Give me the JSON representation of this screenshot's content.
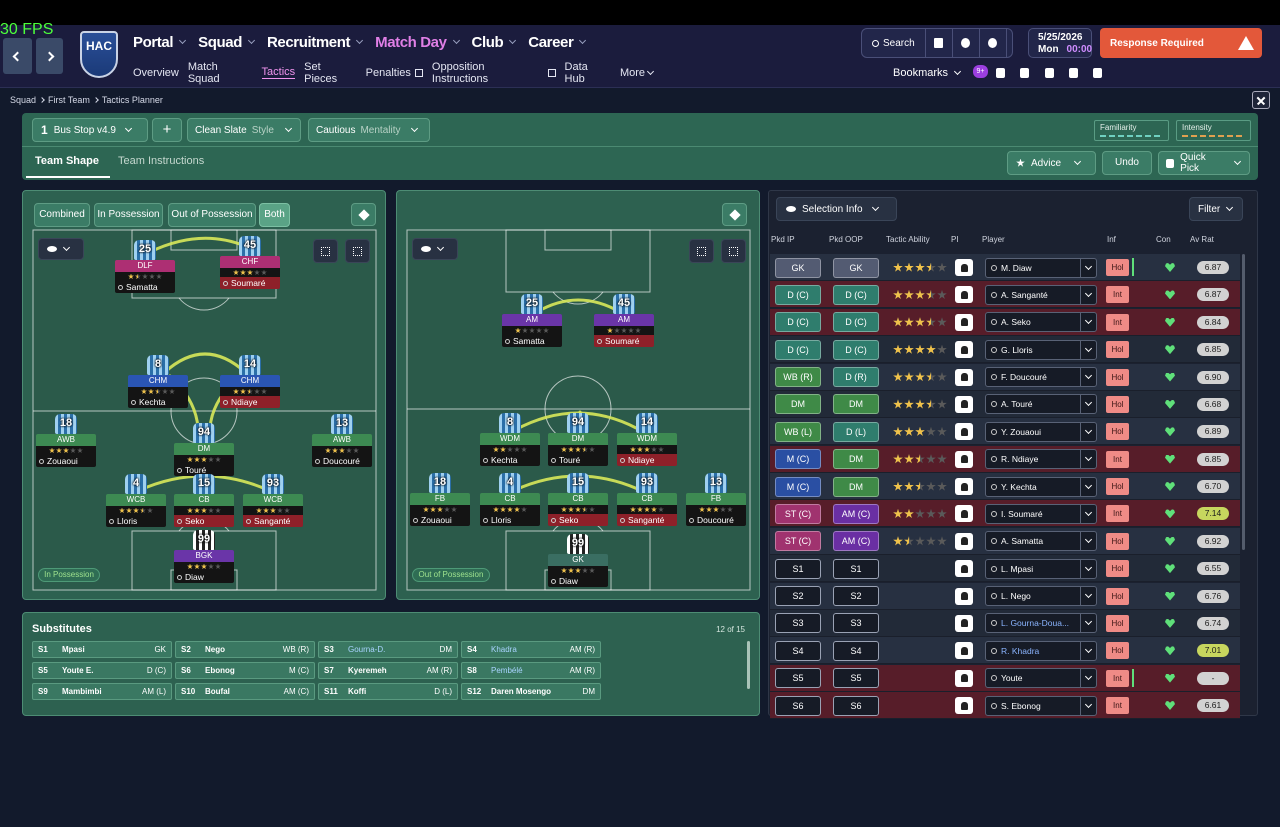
{
  "status": {
    "fps": "30 FPS"
  },
  "header": {
    "club": "HAC",
    "nav": [
      "Portal",
      "Squad",
      "Recruitment",
      "Match Day",
      "Club",
      "Career"
    ],
    "subnav": [
      "Overview",
      "Match Squad",
      "Tactics",
      "Set Pieces",
      "Penalties",
      "Opposition Instructions",
      "Data Hub",
      "More"
    ],
    "search": "Search",
    "date": "5/25/2026",
    "day": "Mon",
    "time": "00:00",
    "alert": "Response Required",
    "bookmarks": "Bookmarks",
    "badge": "9+"
  },
  "breadcrumb": [
    "Squad",
    "First Team",
    "Tactics Planner"
  ],
  "toolbar": {
    "slot": "1",
    "tactic": "Bus Stop v4.9",
    "add": "+",
    "style": "Clean Slate",
    "style_label": "Style",
    "mentality": "Cautious",
    "mentality_label": "Mentality",
    "familiarity": "Familiarity",
    "intensity": "Intensity"
  },
  "tabs": [
    "Team Shape",
    "Team Instructions"
  ],
  "actions": [
    "Advice",
    "Undo",
    "Quick Pick"
  ],
  "filters": [
    "Combined",
    "In Possession",
    "Out of Possession",
    "Both"
  ],
  "pitches": [
    {
      "label": "In Possession",
      "players": [
        {
          "number": "25",
          "role": "DLF",
          "name": "Samatta",
          "stars": 1.5
        },
        {
          "number": "45",
          "role": "CHF",
          "name": "Soumaré",
          "stars": 3
        },
        {
          "number": "8",
          "role": "CHM",
          "name": "Kechta",
          "stars": 2.5
        },
        {
          "number": "14",
          "role": "CHM",
          "name": "Ndiaye",
          "stars": 2.5
        },
        {
          "number": "18",
          "role": "AWB",
          "name": "Zouaoui",
          "stars": 3
        },
        {
          "number": "94",
          "role": "DM",
          "name": "Touré",
          "stars": 3
        },
        {
          "number": "13",
          "role": "AWB",
          "name": "Doucouré",
          "stars": 3
        },
        {
          "number": "4",
          "role": "WCB",
          "name": "Lloris",
          "stars": 3.5
        },
        {
          "number": "15",
          "role": "CB",
          "name": "Seko",
          "stars": 3
        },
        {
          "number": "93",
          "role": "WCB",
          "name": "Sanganté",
          "stars": 3
        },
        {
          "number": "99",
          "role": "BGK",
          "name": "Diaw",
          "stars": 3
        }
      ]
    },
    {
      "label": "Out of Possession",
      "players": [
        {
          "number": "25",
          "role": "AM",
          "name": "Samatta",
          "stars": 1
        },
        {
          "number": "45",
          "role": "AM",
          "name": "Soumaré",
          "stars": 1
        },
        {
          "number": "8",
          "role": "WDM",
          "name": "Kechta",
          "stars": 2
        },
        {
          "number": "94",
          "role": "DM",
          "name": "Touré",
          "stars": 3.5
        },
        {
          "number": "14",
          "role": "WDM",
          "name": "Ndiaye",
          "stars": 3
        },
        {
          "number": "18",
          "role": "FB",
          "name": "Zouaoui",
          "stars": 3
        },
        {
          "number": "4",
          "role": "CB",
          "name": "Lloris",
          "stars": 4
        },
        {
          "number": "15",
          "role": "CB",
          "name": "Seko",
          "stars": 3.5
        },
        {
          "number": "93",
          "role": "CB",
          "name": "Sanganté",
          "stars": 4
        },
        {
          "number": "13",
          "role": "FB",
          "name": "Doucouré",
          "stars": 3
        },
        {
          "number": "99",
          "role": "GK",
          "name": "Diaw",
          "stars": 3
        }
      ]
    }
  ],
  "substitutes": {
    "title": "Substitutes",
    "count": "12 of 15",
    "players": [
      {
        "slot": "S1",
        "name": "Mpasi",
        "position": "GK"
      },
      {
        "slot": "S2",
        "name": "Nego",
        "position": "WB (R)"
      },
      {
        "slot": "S3",
        "name": "Gourna-D.",
        "position": "DM"
      },
      {
        "slot": "S4",
        "name": "Khadra",
        "position": "AM (R)"
      },
      {
        "slot": "S5",
        "name": "Youte E.",
        "position": "D (C)"
      },
      {
        "slot": "S6",
        "name": "Ebonog",
        "position": "M (C)"
      },
      {
        "slot": "S7",
        "name": "Kyeremeh",
        "position": "AM (R)"
      },
      {
        "slot": "S8",
        "name": "Pembélé",
        "position": "AM (R)"
      },
      {
        "slot": "S9",
        "name": "Mambimbi",
        "position": "AM (L)"
      },
      {
        "slot": "S10",
        "name": "Boufal",
        "position": "AM (C)"
      },
      {
        "slot": "S11",
        "name": "Koffi",
        "position": "D (L)"
      },
      {
        "slot": "S12",
        "name": "Daren Mosengo",
        "position": "DM"
      }
    ]
  },
  "selection": {
    "title": "Selection Info",
    "filter": "Filter",
    "columns": [
      "Pkd IP",
      "Pkd OOP",
      "Tactic Ability",
      "PI",
      "Player",
      "Inf",
      "Con",
      "Av Rat"
    ],
    "rows": [
      {
        "ip": "GK",
        "oop": "GK",
        "ability": 3.5,
        "player": "M. Diaw",
        "inf": "Hol",
        "rating": "6.87"
      },
      {
        "ip": "D (C)",
        "oop": "D (C)",
        "ability": 3.5,
        "player": "A. Sanganté",
        "inf": "Int",
        "rating": "6.87"
      },
      {
        "ip": "D (C)",
        "oop": "D (C)",
        "ability": 3.5,
        "player": "A. Seko",
        "inf": "Int",
        "rating": "6.84"
      },
      {
        "ip": "D (C)",
        "oop": "D (C)",
        "ability": 4,
        "player": "G. Lloris",
        "inf": "Hol",
        "rating": "6.85"
      },
      {
        "ip": "WB (R)",
        "oop": "D (R)",
        "ability": 3.5,
        "player": "F. Doucouré",
        "inf": "Hol",
        "rating": "6.90"
      },
      {
        "ip": "DM",
        "oop": "DM",
        "ability": 3.5,
        "player": "A. Touré",
        "inf": "Hol",
        "rating": "6.68"
      },
      {
        "ip": "WB (L)",
        "oop": "D (L)",
        "ability": 3,
        "player": "Y. Zouaoui",
        "inf": "Hol",
        "rating": "6.89"
      },
      {
        "ip": "M (C)",
        "oop": "DM",
        "ability": 2.5,
        "player": "R. Ndiaye",
        "inf": "Int",
        "rating": "6.85"
      },
      {
        "ip": "M (C)",
        "oop": "DM",
        "ability": 2.5,
        "player": "Y. Kechta",
        "inf": "Hol",
        "rating": "6.70"
      },
      {
        "ip": "ST (C)",
        "oop": "AM (C)",
        "ability": 2,
        "player": "I. Soumaré",
        "inf": "Int",
        "rating": "7.14"
      },
      {
        "ip": "ST (C)",
        "oop": "AM (C)",
        "ability": 1.5,
        "player": "A. Samatta",
        "inf": "Hol",
        "rating": "6.92"
      },
      {
        "ip": "S1",
        "oop": "S1",
        "player": "L. Mpasi",
        "inf": "Hol",
        "rating": "6.55"
      },
      {
        "ip": "S2",
        "oop": "S2",
        "player": "L. Nego",
        "inf": "Hol",
        "rating": "6.76"
      },
      {
        "ip": "S3",
        "oop": "S3",
        "player": "L. Gourna-Doua...",
        "inf": "Hol",
        "rating": "6.74"
      },
      {
        "ip": "S4",
        "oop": "S4",
        "player": "R. Khadra",
        "inf": "Hol",
        "rating": "7.01"
      },
      {
        "ip": "S5",
        "oop": "S5",
        "player": "Youte",
        "inf": "Int",
        "rating": "-"
      },
      {
        "ip": "S6",
        "oop": "S6",
        "player": "S. Ebonog",
        "inf": "Int",
        "rating": "6.61"
      }
    ]
  }
}
